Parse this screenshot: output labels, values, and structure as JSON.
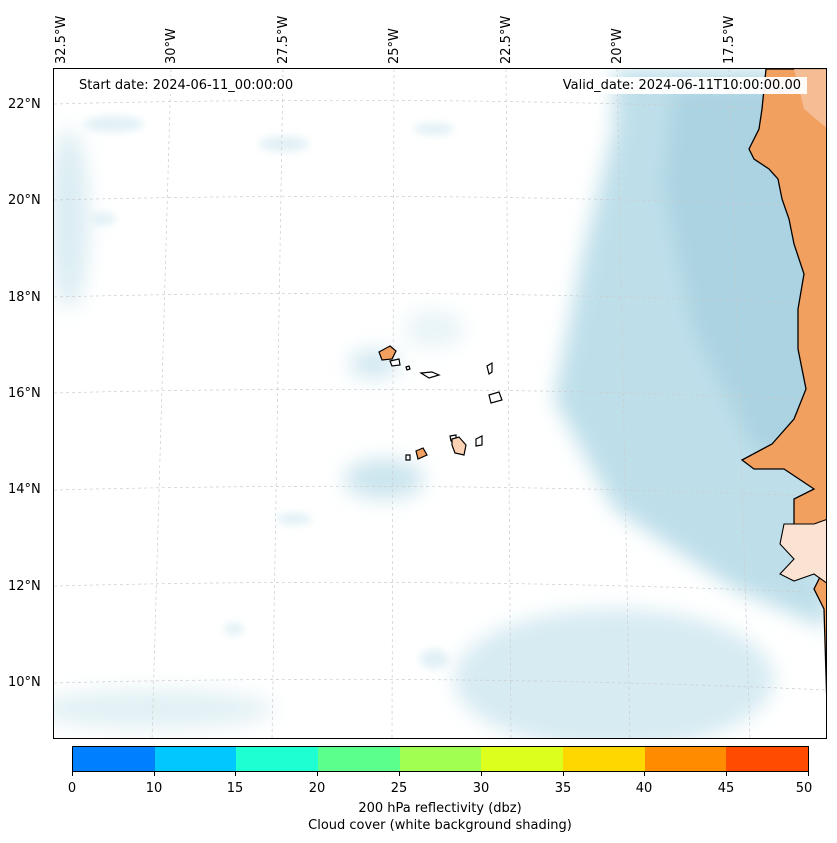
{
  "header": {
    "start_date": "Start date: 2024-06-11_00:00:00",
    "valid_date": "Valid_date: 2024-06-11T10:00:00.00"
  },
  "axes": {
    "longitude_ticks": [
      "32.5°W",
      "30°W",
      "27.5°W",
      "25°W",
      "22.5°W",
      "20°W",
      "17.5°W"
    ],
    "latitude_ticks": [
      "22°N",
      "20°N",
      "18°N",
      "16°N",
      "14°N",
      "12°N",
      "10°N"
    ]
  },
  "colorbar": {
    "ticks": [
      "0",
      "10",
      "15",
      "20",
      "25",
      "30",
      "35",
      "40",
      "45",
      "50"
    ],
    "colors": [
      "#0080ff",
      "#00c8ff",
      "#1effd2",
      "#5aff8c",
      "#a0ff50",
      "#dcff1e",
      "#ffd700",
      "#ff8c00",
      "#ff4b00"
    ],
    "label": "200 hPa reflectivity (dbz)",
    "sublabel": "Cloud cover (white background shading)"
  },
  "style": {
    "land_color": "#f2a060",
    "cloud_color": "#a8d4e3",
    "grid_color": "#cccccc"
  }
}
